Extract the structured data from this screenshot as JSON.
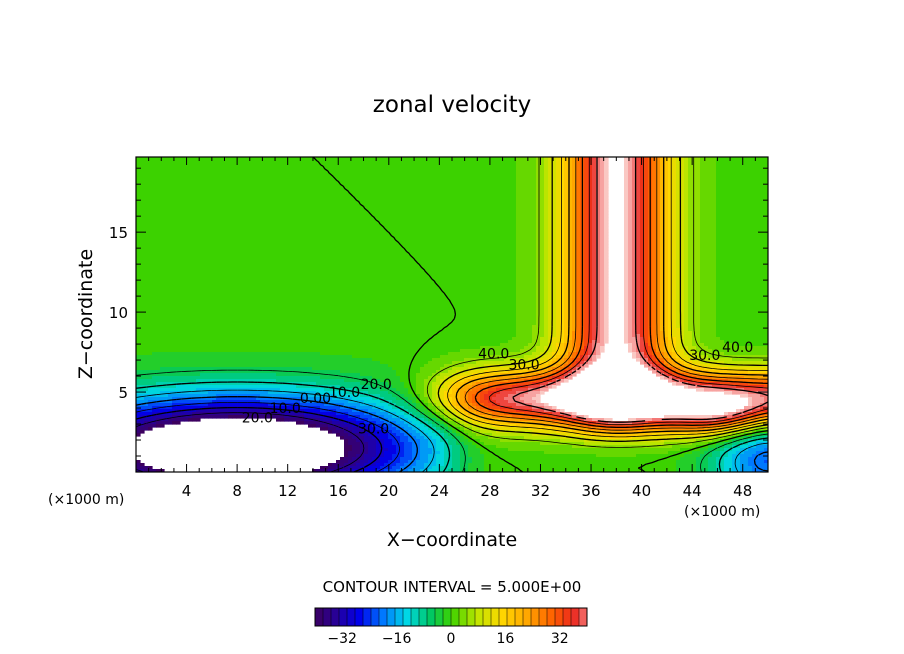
{
  "chart_data": {
    "type": "heatmap",
    "title": "zonal velocity",
    "xlabel": "X−coordinate",
    "ylabel": "Z−coordinate",
    "x_unit": "(×1000 m)",
    "x_unit_right": "(×1000 m)",
    "xlim": [
      0,
      50
    ],
    "ylim": [
      0,
      19.7
    ],
    "x_ticks": [
      4,
      8,
      12,
      16,
      20,
      24,
      28,
      32,
      36,
      40,
      44,
      48
    ],
    "y_ticks": [
      5,
      10,
      15
    ],
    "contour_labels": [
      {
        "text": "40.0",
        "x": 28.3,
        "y": 7.1
      },
      {
        "text": "30.0",
        "x": 30.7,
        "y": 6.4
      },
      {
        "text": "20.0",
        "x": 19.0,
        "y": 5.2
      },
      {
        "text": "10.0",
        "x": 16.5,
        "y": 4.7
      },
      {
        "text": "0.00",
        "x": 14.2,
        "y": 4.3
      },
      {
        "text": "10.0",
        "x": 11.8,
        "y": 3.7
      },
      {
        "text": "20.0",
        "x": 9.6,
        "y": 3.1
      },
      {
        "text": "30.0",
        "x": 18.8,
        "y": 2.4
      },
      {
        "text": "30.0",
        "x": 45.0,
        "y": 7.0
      },
      {
        "text": "40.0",
        "x": 47.6,
        "y": 7.5
      }
    ],
    "contour_interval_text": "CONTOUR INTERVAL = 5.000E+00",
    "colorbar": {
      "range": [
        -40,
        40
      ],
      "tick_values": [
        -32,
        -16,
        0,
        16,
        32
      ],
      "tick_labels": [
        "−32",
        "−16",
        "0",
        "16",
        "32"
      ]
    },
    "value_range": [
      -40,
      46
    ]
  }
}
